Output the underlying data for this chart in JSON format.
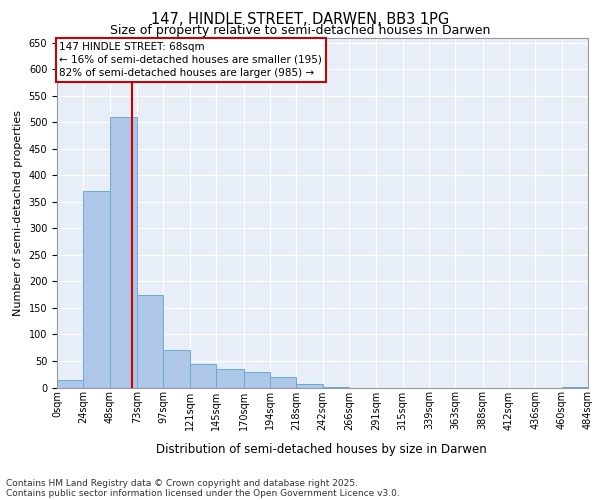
{
  "title_line1": "147, HINDLE STREET, DARWEN, BB3 1PG",
  "title_line2": "Size of property relative to semi-detached houses in Darwen",
  "xlabel": "Distribution of semi-detached houses by size in Darwen",
  "ylabel": "Number of semi-detached properties",
  "annotation_title": "147 HINDLE STREET: 68sqm",
  "annotation_line2": "← 16% of semi-detached houses are smaller (195)",
  "annotation_line3": "82% of semi-detached houses are larger (985) →",
  "footer_line1": "Contains HM Land Registry data © Crown copyright and database right 2025.",
  "footer_line2": "Contains public sector information licensed under the Open Government Licence v3.0.",
  "subject_size": 68,
  "bar_edges": [
    0,
    24,
    48,
    73,
    97,
    121,
    145,
    170,
    194,
    218,
    242,
    266,
    291,
    315,
    339,
    363,
    388,
    412,
    436,
    460,
    484
  ],
  "bar_values": [
    15,
    370,
    510,
    175,
    70,
    45,
    35,
    30,
    20,
    7,
    1,
    0,
    0,
    0,
    0,
    0,
    0,
    0,
    0,
    1
  ],
  "bar_color": "#aec6e8",
  "bar_edge_color": "#6aaad4",
  "ref_line_color": "#cc0000",
  "annotation_box_color": "#cc0000",
  "background_color": "#e8eef8",
  "plot_bg_color": "#dce6f5",
  "ylim": [
    0,
    660
  ],
  "yticks": [
    0,
    50,
    100,
    150,
    200,
    250,
    300,
    350,
    400,
    450,
    500,
    550,
    600,
    650
  ],
  "title1_fontsize": 10.5,
  "title2_fontsize": 9,
  "ylabel_fontsize": 8,
  "xlabel_fontsize": 8.5,
  "tick_fontsize": 7,
  "annotation_fontsize": 7.5,
  "footer_fontsize": 6.5
}
